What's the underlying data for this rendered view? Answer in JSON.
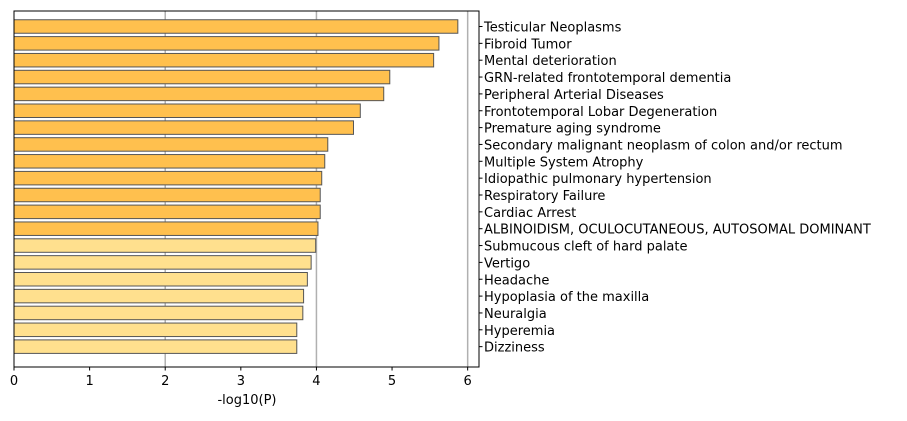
{
  "chart_data": {
    "type": "bar",
    "orientation": "horizontal",
    "title": "",
    "xlabel": "-log10(P)",
    "ylabel": "",
    "xlim": [
      0,
      6.15
    ],
    "xticks": [
      "0",
      "1",
      "2",
      "3",
      "4",
      "5",
      "6"
    ],
    "grid": "vertical lines at x = 2, 4, 6",
    "label_position": "right of plot",
    "categories": [
      "Testicular Neoplasms",
      "Fibroid Tumor",
      "Mental deterioration",
      "GRN-related frontotemporal dementia",
      "Peripheral Arterial Diseases",
      "Frontotemporal Lobar Degeneration",
      "Premature aging syndrome",
      "Secondary malignant neoplasm of colon and/or rectum",
      "Multiple System Atrophy",
      "Idiopathic pulmonary hypertension",
      "Respiratory Failure",
      "Cardiac Arrest",
      "ALBINOIDISM, OCULOCUTANEOUS, AUTOSOMAL DOMINANT",
      "Submucous cleft of hard palate",
      "Vertigo",
      "Headache",
      "Hypoplasia of the maxilla",
      "Neuralgia",
      "Hyperemia",
      "Dizziness"
    ],
    "values": [
      5.87,
      5.62,
      5.55,
      4.97,
      4.89,
      4.58,
      4.49,
      4.15,
      4.11,
      4.07,
      4.05,
      4.05,
      4.02,
      3.99,
      3.93,
      3.88,
      3.83,
      3.82,
      3.74,
      3.74
    ],
    "colors": {
      "dark": "#FFC04E",
      "light": "#FFE08E",
      "edge": "#555555",
      "grid": "#B0B0B0"
    },
    "dark_count": 13
  }
}
